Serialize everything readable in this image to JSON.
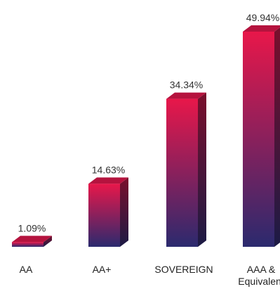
{
  "chart_data": {
    "type": "bar",
    "style": "3d-gradient",
    "categories": [
      "AA",
      "AA+",
      "SOVEREIGN",
      "AAA & Equivalent"
    ],
    "category_lines": [
      [
        "AA"
      ],
      [
        "AA+"
      ],
      [
        "SOVEREIGN"
      ],
      [
        "AAA &",
        "Equivalent"
      ]
    ],
    "values": [
      1.09,
      14.63,
      34.34,
      49.94
    ],
    "value_labels": [
      "1.09%",
      "14.63%",
      "34.34%",
      "49.94%"
    ],
    "unit": "%",
    "ylim": [
      0,
      49.94
    ],
    "grid": false,
    "legend": "none",
    "colors": {
      "front_top": "#e8174a",
      "front_bottom": "#2b2a6e",
      "top_face": "#b5133e",
      "side_top": "#7a0f2c",
      "side_bottom": "#1c1b45"
    }
  }
}
